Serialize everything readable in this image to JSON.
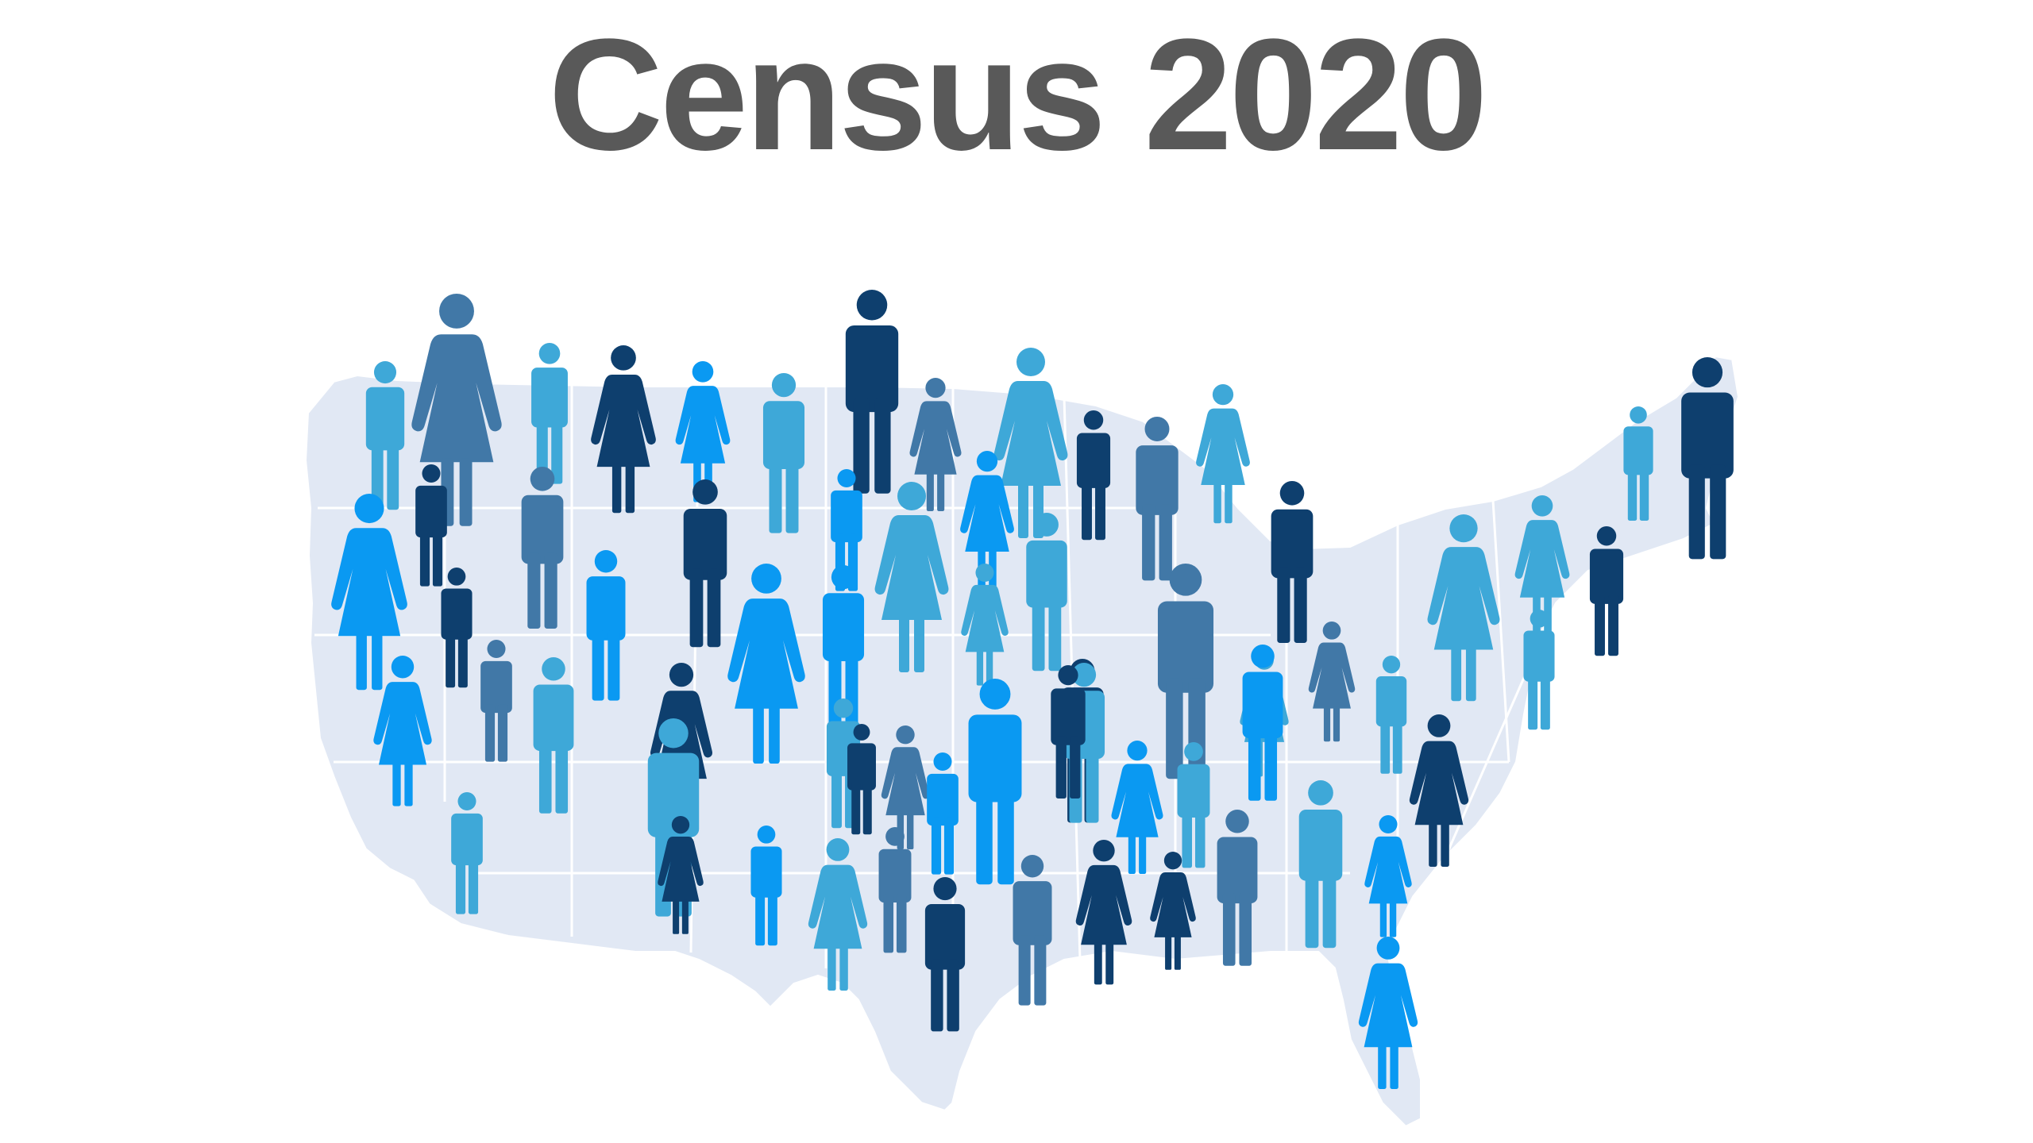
{
  "title": "Census 2020",
  "colors": {
    "background": "#ffffff",
    "title": "#595959",
    "map_fill": "#e1e8f4",
    "map_border": "#ffffff",
    "palette": {
      "navy": "#0e3f6e",
      "steel": "#4178a7",
      "azure": "#0a99f2",
      "sky": "#3ea8d8"
    }
  },
  "map": {
    "depicts": "united-states-map-icon"
  },
  "figures": [
    {
      "kind": "man",
      "color": "sky"
    },
    {
      "kind": "woman",
      "color": "steel"
    },
    {
      "kind": "man",
      "color": "sky"
    },
    {
      "kind": "woman",
      "color": "navy"
    },
    {
      "kind": "woman",
      "color": "azure"
    },
    {
      "kind": "man",
      "color": "sky"
    },
    {
      "kind": "man",
      "color": "navy"
    },
    {
      "kind": "woman",
      "color": "steel"
    },
    {
      "kind": "woman",
      "color": "sky"
    },
    {
      "kind": "man",
      "color": "navy"
    },
    {
      "kind": "man",
      "color": "steel"
    },
    {
      "kind": "woman",
      "color": "sky"
    },
    {
      "kind": "man",
      "color": "navy"
    },
    {
      "kind": "man",
      "color": "sky"
    },
    {
      "kind": "man",
      "color": "navy"
    },
    {
      "kind": "man",
      "color": "navy"
    },
    {
      "kind": "man",
      "color": "steel"
    },
    {
      "kind": "man",
      "color": "azure"
    },
    {
      "kind": "woman",
      "color": "sky"
    },
    {
      "kind": "woman",
      "color": "azure"
    },
    {
      "kind": "man",
      "color": "sky"
    },
    {
      "kind": "woman",
      "color": "sky"
    },
    {
      "kind": "woman",
      "color": "sky"
    },
    {
      "kind": "man",
      "color": "navy"
    },
    {
      "kind": "man",
      "color": "navy"
    },
    {
      "kind": "woman",
      "color": "azure"
    },
    {
      "kind": "man",
      "color": "navy"
    },
    {
      "kind": "man",
      "color": "azure"
    },
    {
      "kind": "woman",
      "color": "sky"
    },
    {
      "kind": "man",
      "color": "steel"
    },
    {
      "kind": "man",
      "color": "azure"
    },
    {
      "kind": "woman",
      "color": "azure"
    },
    {
      "kind": "woman",
      "color": "sky"
    },
    {
      "kind": "man",
      "color": "azure"
    },
    {
      "kind": "man",
      "color": "navy"
    },
    {
      "kind": "woman",
      "color": "steel"
    },
    {
      "kind": "man",
      "color": "sky"
    },
    {
      "kind": "man",
      "color": "sky"
    },
    {
      "kind": "woman",
      "color": "navy"
    },
    {
      "kind": "man",
      "color": "steel"
    },
    {
      "kind": "woman",
      "color": "azure"
    },
    {
      "kind": "man",
      "color": "sky"
    },
    {
      "kind": "woman",
      "color": "navy"
    },
    {
      "kind": "man",
      "color": "sky"
    },
    {
      "kind": "man",
      "color": "sky"
    },
    {
      "kind": "man",
      "color": "azure"
    },
    {
      "kind": "woman",
      "color": "steel"
    },
    {
      "kind": "man",
      "color": "navy"
    },
    {
      "kind": "man",
      "color": "sky"
    },
    {
      "kind": "man",
      "color": "azure"
    },
    {
      "kind": "man",
      "color": "navy"
    },
    {
      "kind": "woman",
      "color": "azure"
    },
    {
      "kind": "man",
      "color": "sky"
    },
    {
      "kind": "man",
      "color": "sky"
    },
    {
      "kind": "man",
      "color": "steel"
    },
    {
      "kind": "woman",
      "color": "navy"
    },
    {
      "kind": "man",
      "color": "azure"
    },
    {
      "kind": "woman",
      "color": "sky"
    },
    {
      "kind": "woman",
      "color": "navy"
    },
    {
      "kind": "man",
      "color": "steel"
    },
    {
      "kind": "man",
      "color": "sky"
    },
    {
      "kind": "woman",
      "color": "azure"
    },
    {
      "kind": "man",
      "color": "navy"
    },
    {
      "kind": "woman",
      "color": "navy"
    },
    {
      "kind": "man",
      "color": "steel"
    },
    {
      "kind": "woman",
      "color": "azure"
    }
  ]
}
